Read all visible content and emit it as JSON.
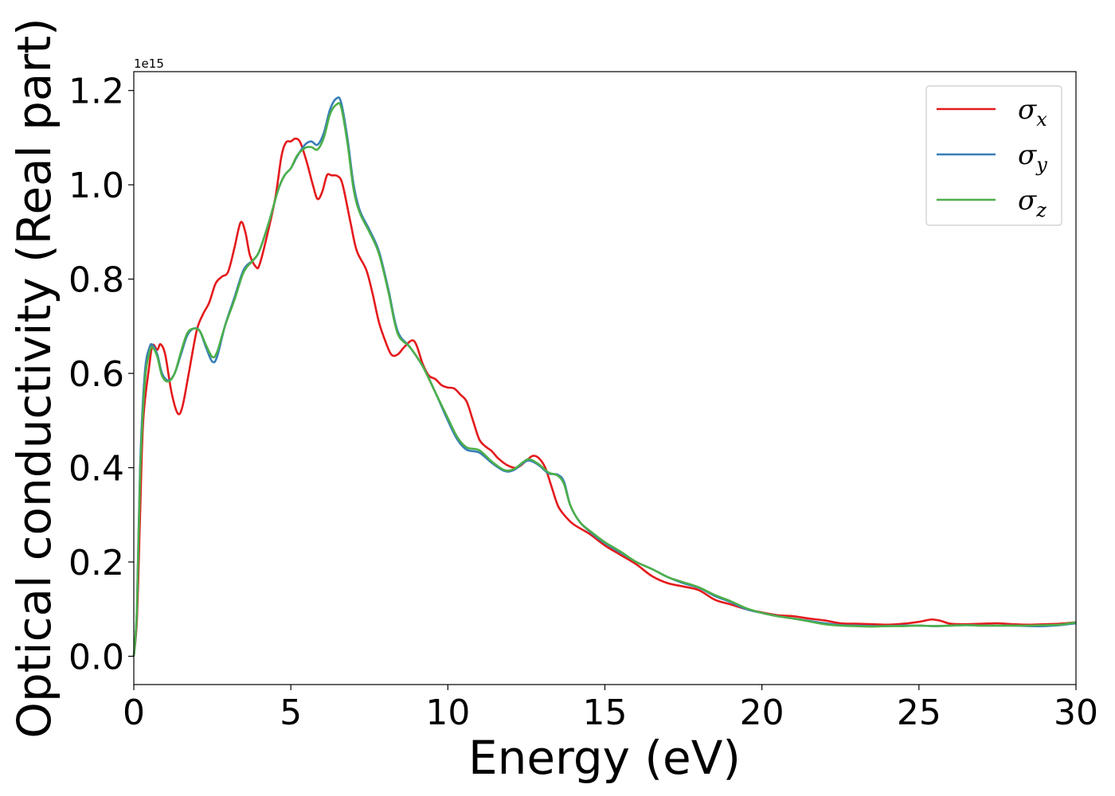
{
  "chart_data": {
    "type": "line",
    "xlabel": "Energy (eV)",
    "ylabel": "Optical conductivity (Real part)",
    "y_offset_label": "1e15",
    "xlim": [
      0,
      30
    ],
    "ylim": [
      -0.06,
      1.24
    ],
    "y_scale": 1000000000000000.0,
    "x_ticks": [
      0,
      5,
      10,
      15,
      20,
      25,
      30
    ],
    "x_tick_labels": [
      "0",
      "5",
      "10",
      "15",
      "20",
      "25",
      "30"
    ],
    "y_ticks": [
      0.0,
      0.2,
      0.4,
      0.6,
      0.8,
      1.0,
      1.2
    ],
    "y_tick_labels": [
      "0.0",
      "0.2",
      "0.4",
      "0.6",
      "0.8",
      "1.0",
      "1.2"
    ],
    "grid": false,
    "legend_position": "top-right",
    "series": [
      {
        "name": "σx",
        "symbol": "σ",
        "subscript": "x",
        "color": "#e41a1c",
        "points": [
          [
            0,
            0
          ],
          [
            0.1,
            0.08
          ],
          [
            0.2,
            0.3
          ],
          [
            0.3,
            0.5
          ],
          [
            0.5,
            0.62
          ],
          [
            0.6,
            0.66
          ],
          [
            0.75,
            0.65
          ],
          [
            0.85,
            0.662
          ],
          [
            1.0,
            0.64
          ],
          [
            1.2,
            0.56
          ],
          [
            1.4,
            0.515
          ],
          [
            1.55,
            0.53
          ],
          [
            1.75,
            0.6
          ],
          [
            2.0,
            0.69
          ],
          [
            2.2,
            0.725
          ],
          [
            2.4,
            0.75
          ],
          [
            2.6,
            0.79
          ],
          [
            2.8,
            0.805
          ],
          [
            3.0,
            0.815
          ],
          [
            3.2,
            0.865
          ],
          [
            3.4,
            0.92
          ],
          [
            3.55,
            0.9
          ],
          [
            3.7,
            0.85
          ],
          [
            3.9,
            0.825
          ],
          [
            4.0,
            0.83
          ],
          [
            4.2,
            0.88
          ],
          [
            4.5,
            0.97
          ],
          [
            4.7,
            1.06
          ],
          [
            4.85,
            1.09
          ],
          [
            5.0,
            1.092
          ],
          [
            5.15,
            1.098
          ],
          [
            5.3,
            1.09
          ],
          [
            5.5,
            1.05
          ],
          [
            5.7,
            1.0
          ],
          [
            5.85,
            0.97
          ],
          [
            6.0,
            0.985
          ],
          [
            6.15,
            1.02
          ],
          [
            6.3,
            1.02
          ],
          [
            6.5,
            1.018
          ],
          [
            6.65,
            1.0
          ],
          [
            6.9,
            0.92
          ],
          [
            7.1,
            0.86
          ],
          [
            7.4,
            0.82
          ],
          [
            7.6,
            0.77
          ],
          [
            7.8,
            0.71
          ],
          [
            8.0,
            0.67
          ],
          [
            8.2,
            0.64
          ],
          [
            8.4,
            0.64
          ],
          [
            8.6,
            0.655
          ],
          [
            8.85,
            0.67
          ],
          [
            9.0,
            0.66
          ],
          [
            9.2,
            0.62
          ],
          [
            9.4,
            0.595
          ],
          [
            9.6,
            0.588
          ],
          [
            9.8,
            0.575
          ],
          [
            10.0,
            0.57
          ],
          [
            10.2,
            0.568
          ],
          [
            10.4,
            0.555
          ],
          [
            10.6,
            0.54
          ],
          [
            10.8,
            0.5
          ],
          [
            11.0,
            0.46
          ],
          [
            11.2,
            0.445
          ],
          [
            11.4,
            0.435
          ],
          [
            11.6,
            0.42
          ],
          [
            11.9,
            0.405
          ],
          [
            12.2,
            0.4
          ],
          [
            12.5,
            0.415
          ],
          [
            12.7,
            0.425
          ],
          [
            12.9,
            0.42
          ],
          [
            13.1,
            0.4
          ],
          [
            13.3,
            0.36
          ],
          [
            13.5,
            0.32
          ],
          [
            13.7,
            0.3
          ],
          [
            14.0,
            0.28
          ],
          [
            14.5,
            0.26
          ],
          [
            15.0,
            0.235
          ],
          [
            15.5,
            0.215
          ],
          [
            16.0,
            0.195
          ],
          [
            16.5,
            0.17
          ],
          [
            17.0,
            0.155
          ],
          [
            17.5,
            0.148
          ],
          [
            18.0,
            0.14
          ],
          [
            18.5,
            0.12
          ],
          [
            19.0,
            0.11
          ],
          [
            19.5,
            0.1
          ],
          [
            20.0,
            0.093
          ],
          [
            20.5,
            0.087
          ],
          [
            21.0,
            0.085
          ],
          [
            21.5,
            0.08
          ],
          [
            22.0,
            0.076
          ],
          [
            22.5,
            0.07
          ],
          [
            23.0,
            0.069
          ],
          [
            23.5,
            0.068
          ],
          [
            24.0,
            0.067
          ],
          [
            24.5,
            0.069
          ],
          [
            25.0,
            0.073
          ],
          [
            25.4,
            0.078
          ],
          [
            25.7,
            0.075
          ],
          [
            26.0,
            0.069
          ],
          [
            26.5,
            0.068
          ],
          [
            27.0,
            0.069
          ],
          [
            27.5,
            0.07
          ],
          [
            28.0,
            0.068
          ],
          [
            28.5,
            0.067
          ],
          [
            29.0,
            0.068
          ],
          [
            29.5,
            0.069
          ],
          [
            30.0,
            0.072
          ]
        ]
      },
      {
        "name": "σy",
        "symbol": "σ",
        "subscript": "y",
        "color": "#377eb8",
        "points": [
          [
            0,
            0
          ],
          [
            0.1,
            0.1
          ],
          [
            0.2,
            0.4
          ],
          [
            0.35,
            0.6
          ],
          [
            0.5,
            0.655
          ],
          [
            0.6,
            0.66
          ],
          [
            0.75,
            0.64
          ],
          [
            0.9,
            0.6
          ],
          [
            1.1,
            0.585
          ],
          [
            1.3,
            0.6
          ],
          [
            1.5,
            0.64
          ],
          [
            1.7,
            0.68
          ],
          [
            1.9,
            0.695
          ],
          [
            2.1,
            0.69
          ],
          [
            2.3,
            0.655
          ],
          [
            2.5,
            0.625
          ],
          [
            2.65,
            0.635
          ],
          [
            2.9,
            0.7
          ],
          [
            3.2,
            0.76
          ],
          [
            3.5,
            0.82
          ],
          [
            3.8,
            0.84
          ],
          [
            4.0,
            0.86
          ],
          [
            4.3,
            0.92
          ],
          [
            4.6,
            0.99
          ],
          [
            4.8,
            1.02
          ],
          [
            5.0,
            1.035
          ],
          [
            5.2,
            1.06
          ],
          [
            5.45,
            1.085
          ],
          [
            5.65,
            1.092
          ],
          [
            5.85,
            1.085
          ],
          [
            6.05,
            1.11
          ],
          [
            6.25,
            1.16
          ],
          [
            6.45,
            1.183
          ],
          [
            6.6,
            1.175
          ],
          [
            6.8,
            1.1
          ],
          [
            7.0,
            1.0
          ],
          [
            7.2,
            0.945
          ],
          [
            7.5,
            0.905
          ],
          [
            7.8,
            0.86
          ],
          [
            8.1,
            0.78
          ],
          [
            8.4,
            0.69
          ],
          [
            8.8,
            0.655
          ],
          [
            9.2,
            0.615
          ],
          [
            9.6,
            0.56
          ],
          [
            10.0,
            0.5
          ],
          [
            10.3,
            0.46
          ],
          [
            10.6,
            0.438
          ],
          [
            11.0,
            0.432
          ],
          [
            11.4,
            0.41
          ],
          [
            11.8,
            0.393
          ],
          [
            12.1,
            0.395
          ],
          [
            12.4,
            0.41
          ],
          [
            12.6,
            0.415
          ],
          [
            12.9,
            0.405
          ],
          [
            13.2,
            0.388
          ],
          [
            13.5,
            0.385
          ],
          [
            13.7,
            0.37
          ],
          [
            13.9,
            0.32
          ],
          [
            14.2,
            0.285
          ],
          [
            14.6,
            0.26
          ],
          [
            15.0,
            0.24
          ],
          [
            15.5,
            0.22
          ],
          [
            16.0,
            0.2
          ],
          [
            16.5,
            0.185
          ],
          [
            17.0,
            0.168
          ],
          [
            17.5,
            0.155
          ],
          [
            18.0,
            0.145
          ],
          [
            18.5,
            0.128
          ],
          [
            19.0,
            0.115
          ],
          [
            19.5,
            0.1
          ],
          [
            20.0,
            0.092
          ],
          [
            20.5,
            0.085
          ],
          [
            21.0,
            0.08
          ],
          [
            21.5,
            0.075
          ],
          [
            22.0,
            0.07
          ],
          [
            22.5,
            0.066
          ],
          [
            23.0,
            0.065
          ],
          [
            23.5,
            0.064
          ],
          [
            24.0,
            0.064
          ],
          [
            24.5,
            0.065
          ],
          [
            25.0,
            0.065
          ],
          [
            25.5,
            0.064
          ],
          [
            26.0,
            0.065
          ],
          [
            26.5,
            0.066
          ],
          [
            27.0,
            0.065
          ],
          [
            27.5,
            0.065
          ],
          [
            28.0,
            0.065
          ],
          [
            28.5,
            0.064
          ],
          [
            29.0,
            0.064
          ],
          [
            29.5,
            0.066
          ],
          [
            30.0,
            0.07
          ]
        ]
      },
      {
        "name": "σz",
        "symbol": "σ",
        "subscript": "z",
        "color": "#4daf4a",
        "points": [
          [
            0,
            0
          ],
          [
            0.1,
            0.1
          ],
          [
            0.2,
            0.38
          ],
          [
            0.35,
            0.58
          ],
          [
            0.5,
            0.645
          ],
          [
            0.6,
            0.655
          ],
          [
            0.75,
            0.635
          ],
          [
            0.9,
            0.595
          ],
          [
            1.1,
            0.583
          ],
          [
            1.3,
            0.6
          ],
          [
            1.5,
            0.645
          ],
          [
            1.7,
            0.685
          ],
          [
            1.9,
            0.695
          ],
          [
            2.1,
            0.69
          ],
          [
            2.3,
            0.66
          ],
          [
            2.5,
            0.635
          ],
          [
            2.65,
            0.645
          ],
          [
            2.9,
            0.7
          ],
          [
            3.2,
            0.755
          ],
          [
            3.5,
            0.815
          ],
          [
            3.8,
            0.84
          ],
          [
            4.0,
            0.86
          ],
          [
            4.3,
            0.92
          ],
          [
            4.6,
            0.99
          ],
          [
            4.8,
            1.02
          ],
          [
            5.0,
            1.035
          ],
          [
            5.2,
            1.062
          ],
          [
            5.45,
            1.078
          ],
          [
            5.65,
            1.08
          ],
          [
            5.85,
            1.075
          ],
          [
            6.05,
            1.1
          ],
          [
            6.25,
            1.15
          ],
          [
            6.45,
            1.17
          ],
          [
            6.6,
            1.165
          ],
          [
            6.8,
            1.09
          ],
          [
            7.0,
            0.99
          ],
          [
            7.2,
            0.94
          ],
          [
            7.5,
            0.9
          ],
          [
            7.8,
            0.855
          ],
          [
            8.1,
            0.775
          ],
          [
            8.4,
            0.685
          ],
          [
            8.8,
            0.655
          ],
          [
            9.2,
            0.615
          ],
          [
            9.6,
            0.56
          ],
          [
            10.0,
            0.505
          ],
          [
            10.3,
            0.465
          ],
          [
            10.6,
            0.443
          ],
          [
            11.0,
            0.437
          ],
          [
            11.4,
            0.413
          ],
          [
            11.8,
            0.395
          ],
          [
            12.1,
            0.397
          ],
          [
            12.4,
            0.412
          ],
          [
            12.6,
            0.418
          ],
          [
            12.9,
            0.407
          ],
          [
            13.2,
            0.39
          ],
          [
            13.5,
            0.383
          ],
          [
            13.7,
            0.365
          ],
          [
            13.9,
            0.32
          ],
          [
            14.2,
            0.285
          ],
          [
            14.6,
            0.262
          ],
          [
            15.0,
            0.242
          ],
          [
            15.5,
            0.222
          ],
          [
            16.0,
            0.2
          ],
          [
            16.5,
            0.185
          ],
          [
            17.0,
            0.168
          ],
          [
            17.5,
            0.157
          ],
          [
            18.0,
            0.146
          ],
          [
            18.5,
            0.13
          ],
          [
            19.0,
            0.117
          ],
          [
            19.5,
            0.102
          ],
          [
            20.0,
            0.092
          ],
          [
            20.5,
            0.085
          ],
          [
            21.0,
            0.08
          ],
          [
            21.5,
            0.074
          ],
          [
            22.0,
            0.068
          ],
          [
            22.5,
            0.065
          ],
          [
            23.0,
            0.064
          ],
          [
            23.5,
            0.063
          ],
          [
            24.0,
            0.064
          ],
          [
            24.5,
            0.064
          ],
          [
            25.0,
            0.065
          ],
          [
            25.5,
            0.064
          ],
          [
            26.0,
            0.065
          ],
          [
            26.5,
            0.066
          ],
          [
            27.0,
            0.065
          ],
          [
            27.5,
            0.065
          ],
          [
            28.0,
            0.065
          ],
          [
            28.5,
            0.065
          ],
          [
            29.0,
            0.066
          ],
          [
            29.5,
            0.067
          ],
          [
            30.0,
            0.072
          ]
        ]
      }
    ]
  }
}
